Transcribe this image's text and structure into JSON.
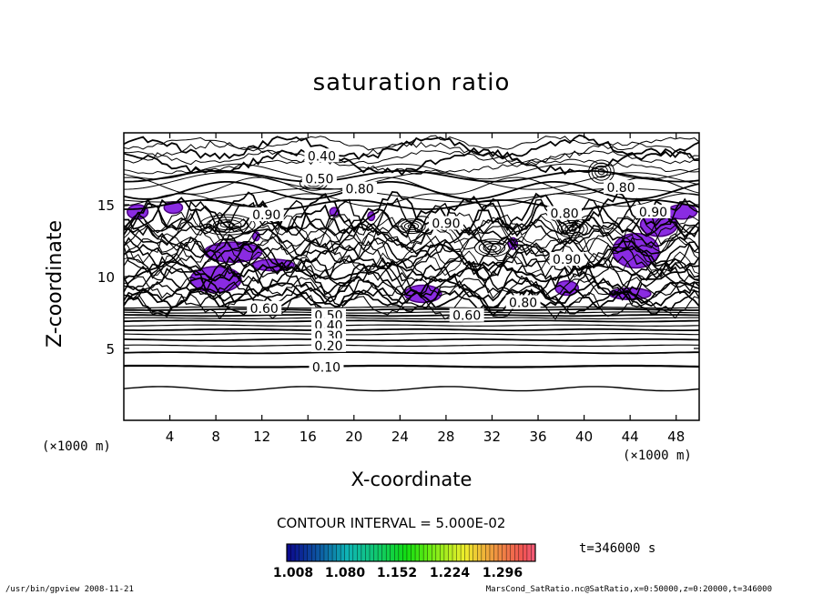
{
  "chart_data": {
    "type": "contour",
    "title": "saturation ratio",
    "xlabel": "X-coordinate",
    "ylabel": "Z-coordinate",
    "x_unit": "(×1000 m)",
    "y_unit": "(×1000 m)",
    "xlim": [
      0,
      50
    ],
    "ylim": [
      0,
      20
    ],
    "x_ticks": [
      4,
      8,
      12,
      16,
      20,
      24,
      28,
      32,
      36,
      40,
      44,
      48
    ],
    "y_ticks": [
      5,
      10,
      15
    ],
    "contour_labels": [
      {
        "label": "0.40",
        "x": 17.2,
        "z": 18.4
      },
      {
        "label": "0.50",
        "x": 17.0,
        "z": 16.8
      },
      {
        "label": "0.80",
        "x": 20.5,
        "z": 16.1
      },
      {
        "label": "0.90",
        "x": 12.4,
        "z": 14.3
      },
      {
        "label": "0.90",
        "x": 28.0,
        "z": 13.7
      },
      {
        "label": "0.80",
        "x": 38.3,
        "z": 14.4
      },
      {
        "label": "0.90",
        "x": 38.5,
        "z": 11.2
      },
      {
        "label": "0.80",
        "x": 43.2,
        "z": 16.2
      },
      {
        "label": "0.90",
        "x": 46.0,
        "z": 14.5
      },
      {
        "label": "0.60",
        "x": 12.2,
        "z": 7.8
      },
      {
        "label": "0.80",
        "x": 34.7,
        "z": 8.2
      },
      {
        "label": "0.60",
        "x": 29.8,
        "z": 7.3
      },
      {
        "label": "0.50",
        "x": 17.8,
        "z": 7.3
      },
      {
        "label": "0.40",
        "x": 17.8,
        "z": 6.6
      },
      {
        "label": "0.30",
        "x": 17.8,
        "z": 5.9
      },
      {
        "label": "0.20",
        "x": 17.8,
        "z": 5.2
      },
      {
        "label": "0.10",
        "x": 17.6,
        "z": 3.7
      }
    ],
    "shaded_threshold": 1.0,
    "contour_interval_text": "CONTOUR INTERVAL = 5.000E-02",
    "time_text": "t=346000  s",
    "colorbar": {
      "ticks": [
        "1.008",
        "1.080",
        "1.152",
        "1.224",
        "1.296"
      ],
      "range": [
        1.008,
        1.332
      ]
    }
  },
  "colors": {
    "line": "#000000",
    "shade": "#8a2be2",
    "shade_dark": "#4b0082",
    "background": "#ffffff"
  },
  "footer": {
    "left": "/usr/bin/gpview   2008-11-21",
    "right": "MarsCond_SatRatio.nc@SatRatio,x=0:50000,z=0:20000,t=346000"
  }
}
